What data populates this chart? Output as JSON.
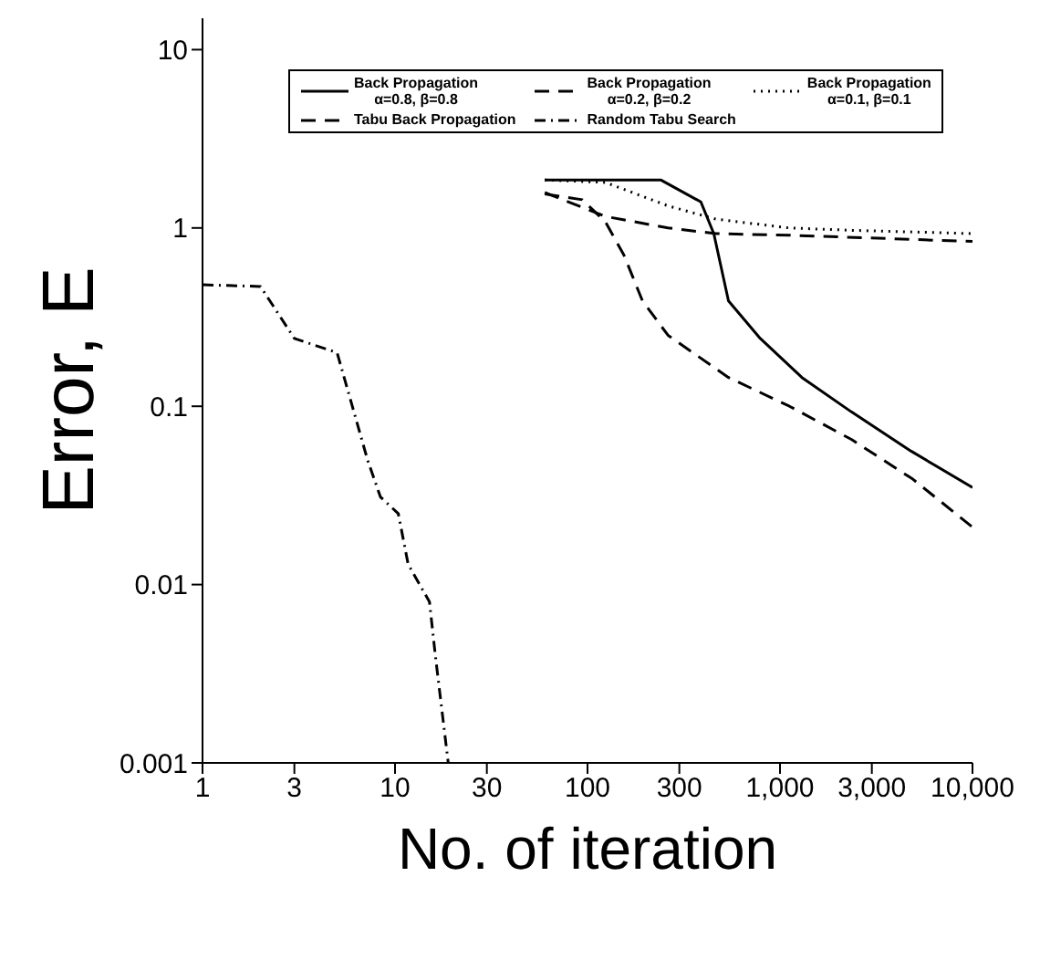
{
  "chart_data": {
    "type": "line",
    "xlabel": "No. of iteration",
    "ylabel": "Error, E",
    "log": "xy",
    "grid": false,
    "legend": "top",
    "marker": "none",
    "xlim": [
      1,
      10000
    ],
    "xticks": [
      1,
      3,
      10,
      30,
      100,
      300,
      {
        "value": 1000,
        "label": "1,000"
      },
      {
        "value": 3000,
        "label": "3,000"
      },
      {
        "value": 10000,
        "label": "10,000"
      }
    ],
    "ylim": [
      0.001,
      15
    ],
    "yticks": [
      0.001,
      0.01,
      0.1,
      1,
      10
    ],
    "series": [
      {
        "name": "Back Propagation\nα=0.8, β=0.8",
        "color": "#000000",
        "line_style": "solid",
        "x": [
          60,
          240,
          388,
          453,
          540,
          790,
          1300,
          2350,
          4800,
          10000
        ],
        "values": [
          1.86,
          1.86,
          1.4,
          0.93,
          0.39,
          0.24,
          0.145,
          0.093,
          0.056,
          0.035
        ]
      },
      {
        "name": "Back Propagation\nα=0.2, β=0.2",
        "color": "#000000",
        "line_style": "dashed",
        "x": [
          60,
          124,
          262,
          465,
          1120,
          10000
        ],
        "values": [
          1.58,
          1.16,
          1.0,
          0.93,
          0.91,
          0.84
        ]
      },
      {
        "name": "Back Propagation\nα=0.1, β=0.1",
        "color": "#000000",
        "line_style": "dotted",
        "x": [
          60,
          124,
          262,
          465,
          1120,
          2360,
          10000
        ],
        "values": [
          1.86,
          1.8,
          1.33,
          1.12,
          1.0,
          0.97,
          0.93
        ]
      },
      {
        "name": "Tabu Back Propagation",
        "color": "#000000",
        "line_style": "dashed",
        "x": [
          60,
          94,
          124,
          155,
          193,
          262,
          540,
          1120,
          2360,
          4900,
          10000
        ],
        "values": [
          1.55,
          1.44,
          1.08,
          0.7,
          0.39,
          0.25,
          0.145,
          0.1,
          0.065,
          0.039,
          0.021
        ]
      },
      {
        "name": "Random Tabu Search",
        "color": "#000000",
        "line_style": "dashdot",
        "x": [
          1,
          2,
          3,
          5,
          6,
          7.2,
          8.4,
          10.4,
          11.7,
          15.1,
          16.2,
          18.9
        ],
        "values": [
          0.48,
          0.47,
          0.24,
          0.2,
          0.1,
          0.05,
          0.031,
          0.025,
          0.013,
          0.008,
          0.004,
          0.001
        ]
      }
    ]
  }
}
